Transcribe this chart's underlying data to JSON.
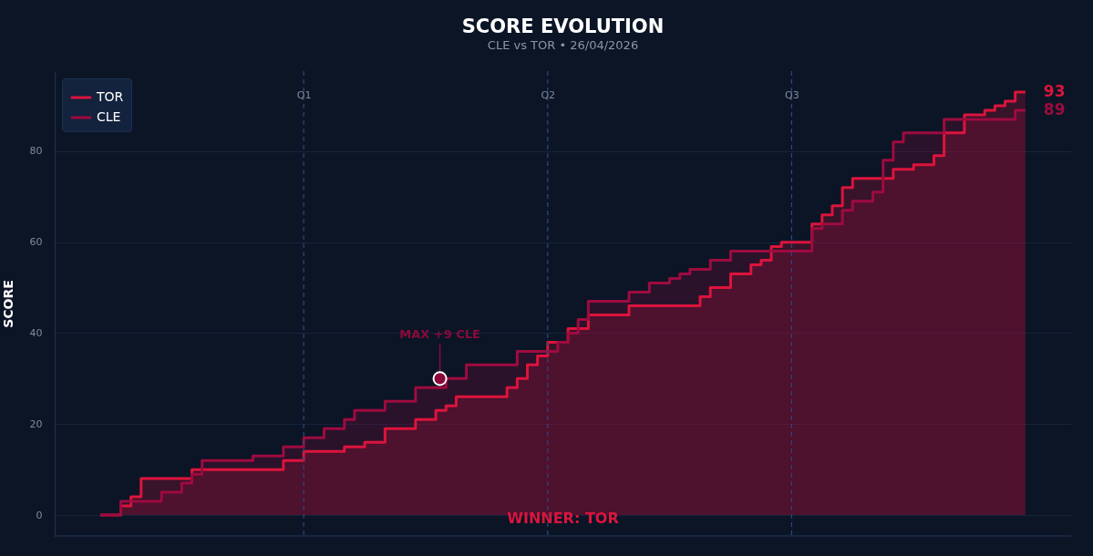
{
  "chart_data": {
    "type": "step",
    "title": "SCORE EVOLUTION",
    "subtitle": "CLE vs TOR  •  26/04/2026",
    "ylabel": "SCORE",
    "categories": [
      null,
      null,
      null,
      null,
      null,
      null,
      null,
      null,
      null,
      null,
      null,
      null,
      null,
      null,
      null,
      null,
      null,
      null,
      null,
      null,
      "Q1",
      null,
      null,
      null,
      null,
      null,
      null,
      null,
      null,
      null,
      null,
      null,
      null,
      null,
      null,
      null,
      null,
      null,
      null,
      null,
      null,
      null,
      null,
      null,
      "Q2",
      null,
      null,
      null,
      null,
      null,
      null,
      null,
      null,
      null,
      null,
      null,
      null,
      null,
      null,
      null,
      null,
      null,
      null,
      null,
      null,
      null,
      null,
      null,
      "Q3",
      null,
      null,
      null,
      null,
      null,
      null,
      null,
      null,
      null,
      null,
      null,
      null,
      null,
      null,
      null,
      null,
      null,
      null,
      null,
      null,
      null,
      null,
      null
    ],
    "ylim": [
      -4.6,
      97.6
    ],
    "yticks": [
      0,
      20,
      40,
      60,
      80
    ],
    "grid": "y",
    "legend": "top left",
    "series": [
      {
        "name": "TOR",
        "color": "#dc143c",
        "values": [
          0,
          0,
          2,
          4,
          8,
          8,
          8,
          8,
          8,
          10,
          10,
          10,
          10,
          10,
          10,
          10,
          10,
          10,
          12,
          12,
          14,
          14,
          14,
          14,
          15,
          15,
          16,
          16,
          19,
          19,
          19,
          21,
          21,
          23,
          24,
          26,
          26,
          26,
          26,
          26,
          28,
          30,
          33,
          35,
          38,
          38,
          41,
          41,
          44,
          44,
          44,
          44,
          46,
          46,
          46,
          46,
          46,
          46,
          46,
          48,
          50,
          50,
          53,
          53,
          55,
          56,
          59,
          60,
          60,
          60,
          64,
          66,
          68,
          72,
          74,
          74,
          74,
          74,
          76,
          76,
          77,
          77,
          79,
          84,
          84,
          88,
          88,
          89,
          90,
          91,
          93,
          93
        ],
        "value_labels": [
          null,
          null,
          null,
          null,
          null,
          null,
          null,
          null,
          null,
          null,
          null,
          null,
          null,
          null,
          null,
          null,
          null,
          null,
          null,
          null,
          null,
          null,
          null,
          null,
          null,
          null,
          null,
          null,
          null,
          null,
          null,
          null,
          null,
          null,
          null,
          null,
          null,
          null,
          null,
          null,
          null,
          null,
          null,
          null,
          null,
          null,
          null,
          null,
          null,
          null,
          null,
          null,
          null,
          null,
          null,
          null,
          null,
          null,
          null,
          null,
          null,
          null,
          null,
          null,
          null,
          null,
          null,
          null,
          null,
          null,
          null,
          null,
          null,
          null,
          null,
          null,
          null,
          null,
          null,
          null,
          null,
          null,
          null,
          null,
          null,
          null,
          null,
          null,
          null,
          null,
          null,
          "93"
        ]
      },
      {
        "name": "CLE",
        "color": "#9e0b3f",
        "values": [
          0,
          0,
          3,
          3,
          3,
          3,
          5,
          5,
          7,
          9,
          12,
          12,
          12,
          12,
          12,
          13,
          13,
          13,
          15,
          15,
          17,
          17,
          19,
          19,
          21,
          23,
          23,
          23,
          25,
          25,
          25,
          28,
          28,
          28,
          30,
          30,
          33,
          33,
          33,
          33,
          33,
          36,
          36,
          36,
          36,
          38,
          40,
          43,
          47,
          47,
          47,
          47,
          49,
          49,
          51,
          51,
          52,
          53,
          54,
          54,
          56,
          56,
          58,
          58,
          58,
          58,
          58,
          58,
          58,
          58,
          63,
          64,
          64,
          67,
          69,
          69,
          71,
          78,
          82,
          84,
          84,
          84,
          84,
          87,
          87,
          87,
          87,
          87,
          87,
          87,
          89,
          89
        ],
        "value_labels": [
          null,
          null,
          null,
          null,
          null,
          null,
          null,
          null,
          null,
          null,
          null,
          null,
          null,
          null,
          null,
          null,
          null,
          null,
          null,
          null,
          null,
          null,
          null,
          null,
          null,
          null,
          null,
          null,
          null,
          null,
          null,
          null,
          null,
          null,
          null,
          null,
          null,
          null,
          null,
          null,
          null,
          null,
          null,
          null,
          null,
          null,
          null,
          null,
          null,
          null,
          null,
          null,
          null,
          null,
          null,
          null,
          null,
          null,
          null,
          null,
          null,
          null,
          null,
          null,
          null,
          null,
          null,
          null,
          null,
          null,
          null,
          null,
          null,
          null,
          null,
          null,
          null,
          null,
          null,
          null,
          null,
          null,
          null,
          null,
          null,
          null,
          null,
          null,
          null,
          null,
          null,
          "89"
        ]
      }
    ],
    "ref_lines": [
      {
        "axis": "x",
        "value": "Q1",
        "line_style": "dashed"
      },
      {
        "axis": "x",
        "value": "Q2",
        "line_style": "dashed"
      },
      {
        "axis": "x",
        "value": "Q3",
        "line_style": "dashed"
      }
    ],
    "annotations": [
      {
        "text": "MAX +9 CLE",
        "y": 30
      },
      "WINNER: TOR"
    ]
  }
}
